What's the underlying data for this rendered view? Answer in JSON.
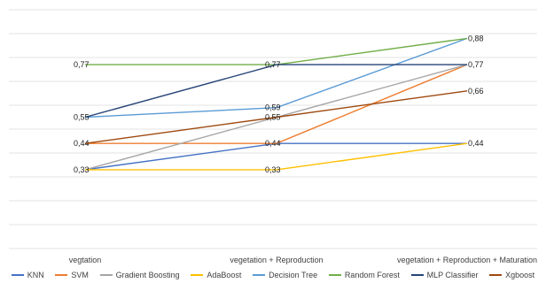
{
  "chart_data": {
    "type": "line",
    "title": "",
    "xlabel": "",
    "ylabel": "",
    "ylim": [
      0,
      1
    ],
    "grid": true,
    "legend_position": "bottom",
    "categories": [
      "vegtation",
      "vegetation + Reproduction",
      "vegetation + Reproduction + Maturation"
    ],
    "series": [
      {
        "name": "KNN",
        "color": "#4472C4",
        "values": [
          0.33,
          0.44,
          0.44
        ],
        "labels": [
          "0,33",
          "0,44",
          "0,44"
        ]
      },
      {
        "name": "SVM",
        "color": "#ED7D31",
        "values": [
          0.44,
          0.44,
          0.77
        ],
        "labels": [
          "0,44",
          "0,44",
          "0,77"
        ]
      },
      {
        "name": "Gradient Boosting",
        "color": "#A5A5A5",
        "values": [
          0.33,
          0.55,
          0.77
        ],
        "labels": [
          "0,33",
          "0,55",
          "0,77"
        ]
      },
      {
        "name": "AdaBoost",
        "color": "#FFC000",
        "values": [
          0.33,
          0.33,
          0.44
        ],
        "labels": [
          "0,33",
          "0,33",
          "0,44"
        ]
      },
      {
        "name": "Decision Tree",
        "color": "#5B9BD5",
        "values": [
          0.55,
          0.59,
          0.88
        ],
        "labels": [
          "0,55",
          "0,59",
          "0,88"
        ]
      },
      {
        "name": "Random Forest",
        "color": "#70AD47",
        "values": [
          0.77,
          0.77,
          0.88
        ],
        "labels": [
          "0,77",
          "0,77",
          "0,88"
        ]
      },
      {
        "name": "MLP Classifier",
        "color": "#264478",
        "values": [
          0.55,
          0.77,
          0.77
        ],
        "labels": [
          "0,55",
          "0,77",
          "0,77"
        ]
      },
      {
        "name": "Xgboost",
        "color": "#9E480E",
        "values": [
          0.44,
          0.55,
          0.66
        ],
        "labels": [
          "0,44",
          "0,55",
          "0,66"
        ]
      }
    ]
  }
}
